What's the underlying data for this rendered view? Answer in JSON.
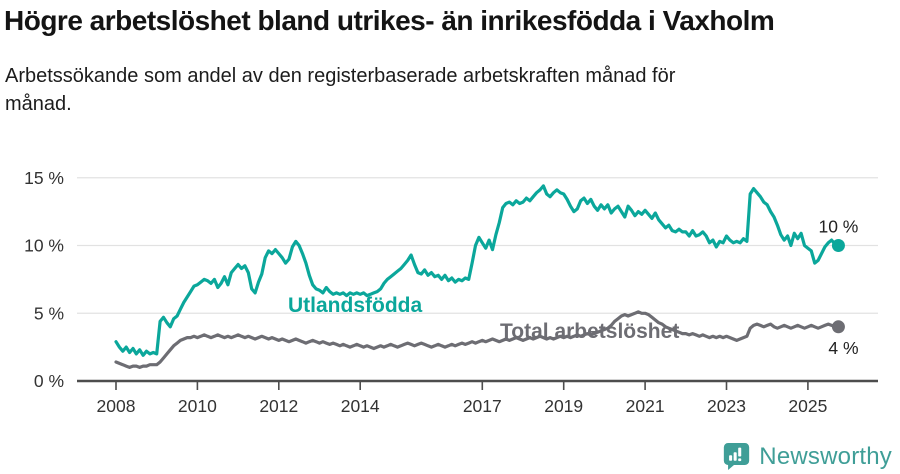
{
  "header": {
    "title": "Högre arbetslöshet bland utrikes- än inrikesfödda i Vaxholm",
    "subtitle": "Arbetssökande som andel av den registerbaserade arbetskraften månad för månad."
  },
  "colors": {
    "utlandsfodda": "#0ba79b",
    "total": "#6d6d73",
    "grid": "#e2e2e2",
    "axis": "#4d4d4d",
    "brand_teal": "#3f9e97"
  },
  "chart_data": {
    "type": "line",
    "title": "Högre arbetslöshet bland utrikes- än inrikesfödda i Vaxholm",
    "subtitle": "Arbetssökande som andel av den registerbaserade arbetskraften månad för månad.",
    "x_unit": "month",
    "x_range": [
      "2008-01",
      "2025-10"
    ],
    "x_tick_labels": [
      "2008",
      "2010",
      "2012",
      "2014",
      "2017",
      "2019",
      "2021",
      "2023",
      "2025"
    ],
    "y_tick_values": [
      0,
      5,
      10,
      15
    ],
    "y_tick_labels": [
      "0 %",
      "5 %",
      "10 %",
      "15 %"
    ],
    "ylim": [
      0,
      15.5
    ],
    "grid": "horizontal",
    "legend_position": "inline-labels",
    "series": [
      {
        "name": "Utlandsfödda",
        "color": "#0ba79b",
        "end_label": "10 %",
        "values": [
          2.9,
          2.5,
          2.2,
          2.5,
          2.1,
          2.4,
          2.0,
          2.3,
          1.9,
          2.2,
          2.0,
          2.1,
          2.0,
          4.4,
          4.7,
          4.3,
          4.0,
          4.6,
          4.8,
          5.3,
          5.8,
          6.2,
          6.6,
          7.0,
          7.1,
          7.3,
          7.5,
          7.4,
          7.2,
          7.5,
          6.9,
          7.2,
          7.7,
          7.1,
          8.0,
          8.3,
          8.6,
          8.3,
          8.5,
          8.0,
          6.8,
          6.5,
          7.3,
          7.9,
          9.1,
          9.6,
          9.4,
          9.7,
          9.4,
          9.1,
          8.7,
          9.0,
          9.9,
          10.3,
          10.0,
          9.4,
          8.7,
          7.8,
          7.1,
          6.8,
          6.7,
          6.5,
          6.9,
          6.6,
          6.4,
          6.5,
          6.4,
          6.5,
          6.3,
          6.5,
          6.4,
          6.5,
          6.4,
          6.5,
          6.3,
          6.4,
          6.5,
          6.6,
          6.8,
          7.2,
          7.5,
          7.7,
          7.9,
          8.1,
          8.3,
          8.6,
          8.9,
          9.3,
          8.6,
          8.0,
          7.9,
          8.2,
          7.8,
          8.0,
          7.7,
          7.8,
          7.5,
          7.8,
          7.4,
          7.6,
          7.3,
          7.5,
          7.4,
          7.6,
          7.5,
          8.7,
          10.0,
          10.6,
          10.2,
          9.8,
          10.4,
          9.7,
          10.8,
          11.7,
          12.8,
          13.1,
          13.2,
          13.0,
          13.3,
          13.1,
          13.2,
          13.5,
          13.3,
          13.6,
          13.9,
          14.1,
          14.4,
          13.8,
          13.6,
          13.9,
          14.1,
          13.9,
          13.8,
          13.4,
          12.9,
          12.5,
          12.7,
          13.3,
          13.5,
          13.1,
          13.4,
          12.9,
          12.6,
          13.0,
          12.7,
          13.0,
          12.4,
          12.7,
          12.9,
          12.5,
          12.1,
          12.9,
          12.6,
          12.2,
          12.5,
          12.3,
          12.6,
          12.3,
          12.0,
          12.4,
          11.9,
          11.6,
          11.3,
          11.5,
          11.1,
          11.0,
          11.2,
          11.0,
          11.0,
          10.7,
          11.1,
          10.7,
          10.8,
          11.0,
          10.7,
          10.2,
          10.4,
          9.9,
          10.3,
          10.2,
          10.7,
          10.4,
          10.2,
          10.3,
          10.2,
          10.5,
          10.3,
          13.8,
          14.2,
          13.9,
          13.6,
          13.2,
          13.0,
          12.5,
          12.1,
          11.5,
          10.8,
          10.4,
          10.7,
          10.0,
          10.9,
          10.5,
          10.9,
          10.0,
          9.8,
          9.6,
          8.7,
          8.9,
          9.4,
          9.9,
          10.2,
          10.4,
          10.1,
          10.0
        ]
      },
      {
        "name": "Total arbetslöshet",
        "color": "#6d6d73",
        "end_label": "4 %",
        "values": [
          1.4,
          1.3,
          1.2,
          1.1,
          1.0,
          1.1,
          1.1,
          1.0,
          1.1,
          1.1,
          1.2,
          1.2,
          1.2,
          1.4,
          1.7,
          2.0,
          2.3,
          2.6,
          2.8,
          3.0,
          3.1,
          3.2,
          3.2,
          3.3,
          3.2,
          3.3,
          3.4,
          3.3,
          3.2,
          3.3,
          3.4,
          3.3,
          3.2,
          3.3,
          3.2,
          3.3,
          3.4,
          3.3,
          3.2,
          3.3,
          3.2,
          3.1,
          3.2,
          3.3,
          3.2,
          3.1,
          3.2,
          3.1,
          3.0,
          3.1,
          3.0,
          2.9,
          3.0,
          3.1,
          3.0,
          2.9,
          2.8,
          2.9,
          3.0,
          2.9,
          2.8,
          2.9,
          2.8,
          2.7,
          2.8,
          2.7,
          2.6,
          2.7,
          2.6,
          2.5,
          2.6,
          2.7,
          2.6,
          2.5,
          2.6,
          2.5,
          2.4,
          2.5,
          2.6,
          2.5,
          2.6,
          2.7,
          2.6,
          2.5,
          2.6,
          2.7,
          2.8,
          2.7,
          2.6,
          2.7,
          2.8,
          2.7,
          2.6,
          2.5,
          2.6,
          2.7,
          2.6,
          2.5,
          2.6,
          2.7,
          2.6,
          2.7,
          2.8,
          2.7,
          2.8,
          2.9,
          2.8,
          2.9,
          3.0,
          2.9,
          3.0,
          3.1,
          3.0,
          2.9,
          3.0,
          3.1,
          3.0,
          3.1,
          3.2,
          3.1,
          3.0,
          3.1,
          3.2,
          3.1,
          3.2,
          3.3,
          3.2,
          3.1,
          3.2,
          3.1,
          3.2,
          3.3,
          3.2,
          3.3,
          3.2,
          3.3,
          3.4,
          3.3,
          3.4,
          3.5,
          3.4,
          3.5,
          3.6,
          3.7,
          3.8,
          3.9,
          4.1,
          4.4,
          4.6,
          4.8,
          4.9,
          4.8,
          4.9,
          5.0,
          5.1,
          5.0,
          5.0,
          4.9,
          4.7,
          4.5,
          4.3,
          4.2,
          4.0,
          3.9,
          3.8,
          3.7,
          3.6,
          3.5,
          3.5,
          3.4,
          3.5,
          3.4,
          3.3,
          3.4,
          3.3,
          3.2,
          3.3,
          3.2,
          3.3,
          3.2,
          3.3,
          3.2,
          3.1,
          3.0,
          3.1,
          3.2,
          3.3,
          3.9,
          4.1,
          4.2,
          4.1,
          4.0,
          4.1,
          4.2,
          4.0,
          3.9,
          4.0,
          4.1,
          4.0,
          3.9,
          4.0,
          4.1,
          4.0,
          3.9,
          4.0,
          4.1,
          4.0,
          3.9,
          4.0,
          4.1,
          4.2,
          4.1,
          4.0,
          4.0
        ]
      }
    ]
  },
  "footer": {
    "brand": "Newsworthy",
    "logo_icon": "bar-chart-speech-bubble"
  }
}
